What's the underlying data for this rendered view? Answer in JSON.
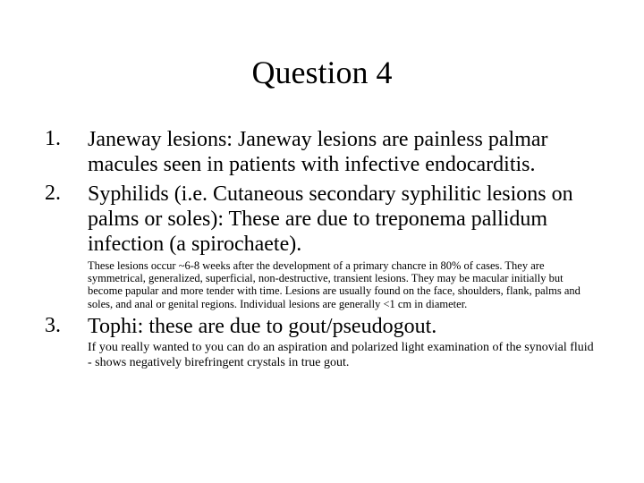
{
  "title": "Question 4",
  "items": [
    {
      "main": "Janeway lesions: Janeway lesions are painless palmar macules seen in patients with infective endocarditis.",
      "sub": ""
    },
    {
      "main": "Syphilids (i.e. Cutaneous secondary syphilitic lesions on palms or soles): These are due to treponema pallidum infection (a spirochaete).",
      "sub": "These lesions occur ~6-8 weeks after the development of a primary chancre in 80% of cases. They are symmetrical, generalized, superficial, non-destructive, transient lesions. They may be macular initially but become papular and more tender with time. Lesions are usually found on the face, shoulders, flank, palms and soles, and anal or genital regions. Individual lesions are generally <1 cm in diameter."
    },
    {
      "main": "Tophi: these are due to gout/pseudogout.",
      "sub": "If you really wanted to you can do an aspiration and polarized light examination of the synovial fluid - shows negatively birefringent crystals in true gout."
    }
  ],
  "styling": {
    "background_color": "#ffffff",
    "text_color": "#000000",
    "title_fontsize": 36,
    "main_fontsize": 24,
    "sub1_fontsize": 12.5,
    "sub2_fontsize": 14,
    "font_family": "Times New Roman"
  }
}
